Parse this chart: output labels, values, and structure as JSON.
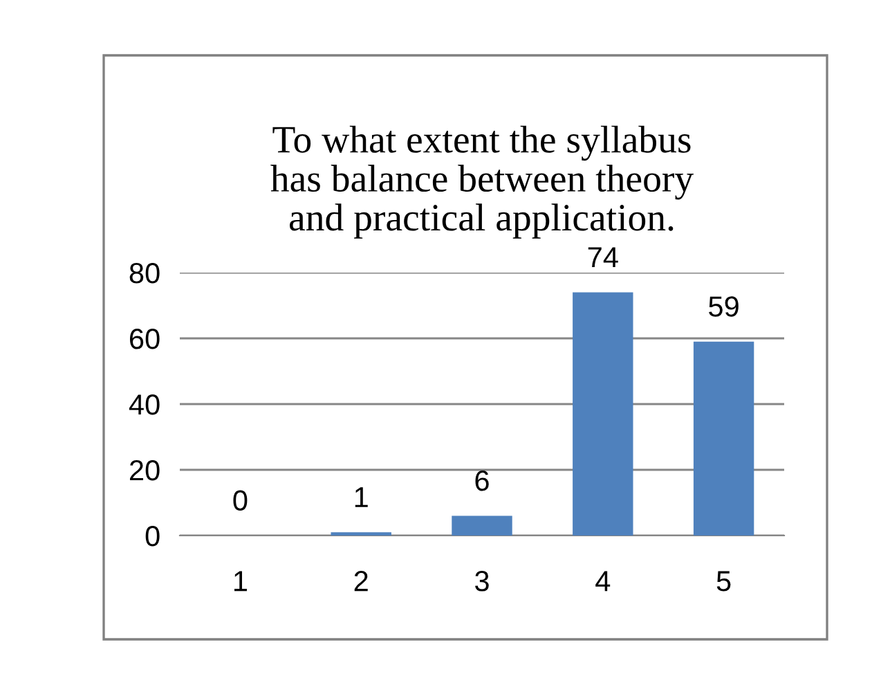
{
  "chart_data": {
    "type": "bar",
    "title": "To what extent the syllabus\nhas balance between theory\nand practical application.",
    "categories": [
      "1",
      "2",
      "3",
      "4",
      "5"
    ],
    "values": [
      0,
      1,
      6,
      74,
      59
    ],
    "color": "#4f81bd",
    "ylim": [
      0,
      80
    ],
    "yticks": [
      0,
      20,
      40,
      60,
      80
    ],
    "grid": "y",
    "data_labels": true
  }
}
